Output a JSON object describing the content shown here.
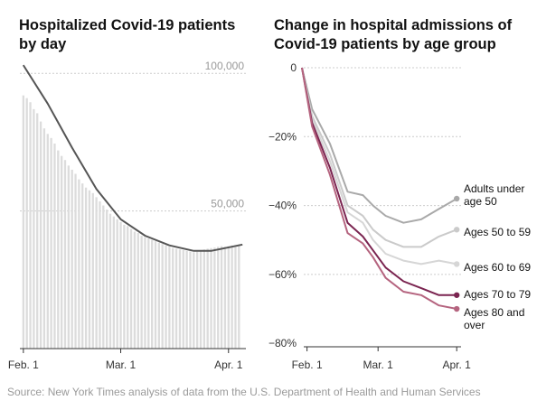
{
  "source": "Source: New York Times analysis of data from the U.S. Department of Health and Human Services",
  "chart_data": [
    {
      "type": "bar",
      "title_lines": [
        "Hospitalized Covid-19 patients",
        "by day"
      ],
      "x_tick_labels": [
        "Feb. 1",
        "Mar. 1",
        "Apr. 1"
      ],
      "y_tick_labels": [
        "50,000",
        "100,000"
      ],
      "y_ticks": [
        50000,
        100000
      ],
      "ylim": [
        0,
        105000
      ],
      "x_range_days": [
        -1,
        64
      ],
      "x_tick_days": [
        0,
        28,
        59
      ],
      "bars": [
        {
          "day": 0,
          "value": 92000
        },
        {
          "day": 1,
          "value": 91000
        },
        {
          "day": 2,
          "value": 89500
        },
        {
          "day": 3,
          "value": 87000
        },
        {
          "day": 4,
          "value": 85500
        },
        {
          "day": 5,
          "value": 82500
        },
        {
          "day": 6,
          "value": 80000
        },
        {
          "day": 7,
          "value": 78000
        },
        {
          "day": 8,
          "value": 76500
        },
        {
          "day": 9,
          "value": 74500
        },
        {
          "day": 10,
          "value": 72000
        },
        {
          "day": 11,
          "value": 70000
        },
        {
          "day": 12,
          "value": 68500
        },
        {
          "day": 13,
          "value": 66500
        },
        {
          "day": 14,
          "value": 65000
        },
        {
          "day": 15,
          "value": 63500
        },
        {
          "day": 16,
          "value": 61500
        },
        {
          "day": 17,
          "value": 60000
        },
        {
          "day": 18,
          "value": 58500
        },
        {
          "day": 19,
          "value": 57500
        },
        {
          "day": 20,
          "value": 56500
        },
        {
          "day": 21,
          "value": 55000
        },
        {
          "day": 22,
          "value": 53500
        },
        {
          "day": 23,
          "value": 52000
        },
        {
          "day": 24,
          "value": 50500
        },
        {
          "day": 25,
          "value": 49000
        },
        {
          "day": 26,
          "value": 48000
        },
        {
          "day": 27,
          "value": 47000
        },
        {
          "day": 28,
          "value": 46000
        },
        {
          "day": 29,
          "value": 45000
        },
        {
          "day": 30,
          "value": 44500
        },
        {
          "day": 31,
          "value": 43500
        },
        {
          "day": 32,
          "value": 42500
        },
        {
          "day": 33,
          "value": 42000
        },
        {
          "day": 34,
          "value": 41000
        },
        {
          "day": 35,
          "value": 40500
        },
        {
          "day": 36,
          "value": 40000
        },
        {
          "day": 37,
          "value": 39500
        },
        {
          "day": 38,
          "value": 39000
        },
        {
          "day": 39,
          "value": 38500
        },
        {
          "day": 40,
          "value": 38000
        },
        {
          "day": 41,
          "value": 37500
        },
        {
          "day": 42,
          "value": 37000
        },
        {
          "day": 43,
          "value": 36500
        },
        {
          "day": 44,
          "value": 36200
        },
        {
          "day": 45,
          "value": 36000
        },
        {
          "day": 46,
          "value": 35800
        },
        {
          "day": 47,
          "value": 35500
        },
        {
          "day": 48,
          "value": 35300
        },
        {
          "day": 49,
          "value": 35000
        },
        {
          "day": 50,
          "value": 35200
        },
        {
          "day": 51,
          "value": 35600
        },
        {
          "day": 52,
          "value": 36000
        },
        {
          "day": 53,
          "value": 36300
        },
        {
          "day": 54,
          "value": 36500
        },
        {
          "day": 55,
          "value": 36700
        },
        {
          "day": 56,
          "value": 37000
        },
        {
          "day": 57,
          "value": 37200
        },
        {
          "day": 58,
          "value": 37000
        },
        {
          "day": 59,
          "value": 37200
        },
        {
          "day": 60,
          "value": 37500
        },
        {
          "day": 61,
          "value": 37600
        },
        {
          "day": 62,
          "value": 37800
        }
      ],
      "average_line": [
        {
          "day": 0,
          "value": 103000
        },
        {
          "day": 7,
          "value": 89000
        },
        {
          "day": 14,
          "value": 73000
        },
        {
          "day": 21,
          "value": 58000
        },
        {
          "day": 28,
          "value": 47000
        },
        {
          "day": 35,
          "value": 41000
        },
        {
          "day": 42,
          "value": 37500
        },
        {
          "day": 49,
          "value": 35500
        },
        {
          "day": 54,
          "value": 35500
        },
        {
          "day": 60,
          "value": 37000
        },
        {
          "day": 63,
          "value": 37800
        }
      ],
      "colors": {
        "bars": "#dcdcdc",
        "line": "#555555",
        "grid": "#cccccc"
      }
    },
    {
      "type": "line",
      "title_lines": [
        "Change in hospital admissions of",
        "Covid-19 patients by age group"
      ],
      "x_tick_labels": [
        "Feb. 1",
        "Mar. 1",
        "Apr. 1"
      ],
      "x_tick_days": [
        0,
        28,
        59
      ],
      "x_range_days": [
        -2,
        60
      ],
      "y_ticks": [
        0,
        -20,
        -40,
        -60,
        -80
      ],
      "y_tick_labels": [
        "0",
        "−20%",
        "−40%",
        "−60%",
        "−80%"
      ],
      "ylim": [
        -81,
        0
      ],
      "series": [
        {
          "name_lines": [
            "Adults under",
            "age 50"
          ],
          "color": "#a9a9a9",
          "x": [
            -2,
            2,
            9,
            16,
            22,
            26,
            31,
            38,
            45,
            52,
            59
          ],
          "y": [
            0,
            -12,
            -22,
            -36,
            -37,
            -40,
            -43,
            -45,
            -44,
            -41,
            -38
          ]
        },
        {
          "name_lines": [
            "Ages 50 to 59"
          ],
          "color": "#cacaca",
          "x": [
            -2,
            2,
            9,
            16,
            22,
            26,
            31,
            38,
            45,
            52,
            59
          ],
          "y": [
            0,
            -14,
            -25,
            -40,
            -43,
            -47,
            -50,
            -52,
            -52,
            -49,
            -47
          ]
        },
        {
          "name_lines": [
            "Ages 60 to 69"
          ],
          "color": "#d6d6d6",
          "x": [
            -2,
            2,
            9,
            16,
            22,
            26,
            31,
            38,
            45,
            52,
            59
          ],
          "y": [
            0,
            -15,
            -27,
            -42,
            -45,
            -50,
            -54,
            -56,
            -57,
            -56,
            -57
          ]
        },
        {
          "name_lines": [
            "Ages 70 to 79"
          ],
          "color": "#7a2450",
          "x": [
            -2,
            2,
            9,
            16,
            22,
            26,
            31,
            38,
            45,
            52,
            59
          ],
          "y": [
            0,
            -16,
            -29,
            -45,
            -49,
            -53,
            -58,
            -62,
            -64,
            -66,
            -66
          ]
        },
        {
          "name_lines": [
            "Ages 80 and",
            "over"
          ],
          "color": "#b5647f",
          "x": [
            -2,
            2,
            9,
            16,
            22,
            26,
            31,
            38,
            45,
            52,
            59
          ],
          "y": [
            0,
            -17,
            -31,
            -48,
            -51,
            -55,
            -61,
            -65,
            -66,
            -69,
            -70
          ]
        }
      ]
    }
  ]
}
